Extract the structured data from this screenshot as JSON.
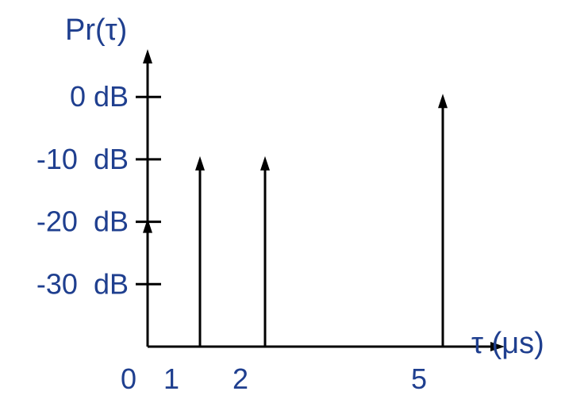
{
  "colors": {
    "text": "#1f3f8f",
    "axis": "#000000"
  },
  "chart_data": {
    "type": "stem",
    "title": "",
    "ylabel": "Pr(τ)",
    "xlabel": "τ (μs)",
    "y_unit": "dB",
    "ylim": [
      -40,
      3
    ],
    "xlim": [
      0,
      6.5
    ],
    "y_ticks": [
      {
        "value": 0,
        "label": "0 dB"
      },
      {
        "value": -10,
        "label": "-10  dB"
      },
      {
        "value": -20,
        "label": "-20  dB"
      },
      {
        "value": -30,
        "label": "-30  dB"
      }
    ],
    "x_ticks": [
      {
        "value": 0,
        "label": "0"
      },
      {
        "value": 1,
        "label": "1"
      },
      {
        "value": 2,
        "label": "2"
      },
      {
        "value": 5,
        "label": "5"
      }
    ],
    "series": [
      {
        "x": [
          0,
          1,
          2,
          5
        ],
        "y": [
          -20,
          -10,
          -10,
          0
        ]
      }
    ]
  }
}
